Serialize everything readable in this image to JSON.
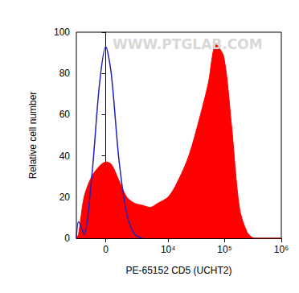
{
  "chart_data": {
    "type": "area",
    "xlabel": "PE-65152 CD5 (UCHT2)",
    "ylabel": "Relative cell number",
    "annotations": [
      "WWW.PTGLAB.COM"
    ],
    "x": [
      -2400,
      -2150,
      -1600,
      -960,
      -410,
      0,
      357,
      900,
      1530,
      2320,
      3350,
      4700,
      6530,
      10000,
      14500,
      23300,
      37500,
      51300,
      70500,
      96700,
      132000,
      182000,
      249000,
      341000,
      548000,
      1000000
    ],
    "series": [
      {
        "type": "area",
        "color": "#ff0000",
        "values": [
          0,
          2,
          20,
          30,
          35,
          37,
          36,
          28,
          20,
          17,
          16,
          15,
          17,
          20,
          27,
          40,
          60,
          75,
          94,
          88,
          55,
          15,
          3,
          0,
          0,
          0
        ]
      },
      {
        "type": "line",
        "color": "#2222bb",
        "values": [
          0,
          8,
          2,
          30,
          75,
          93,
          80,
          38,
          12,
          2,
          0,
          null,
          null,
          null,
          null,
          null,
          null,
          null,
          null,
          null,
          null,
          null,
          null,
          null,
          null,
          null
        ]
      }
    ],
    "xlim": [
      -2400,
      1000000
    ],
    "xticks": [
      0,
      {
        "value": 10000,
        "label": "10⁴"
      },
      {
        "value": 100000,
        "label": "10⁵"
      },
      {
        "value": 1000000,
        "label": "10⁶"
      }
    ],
    "ylim": [
      0,
      100
    ],
    "yticks": [
      0,
      20,
      40,
      60,
      80,
      100
    ],
    "grid": false
  }
}
